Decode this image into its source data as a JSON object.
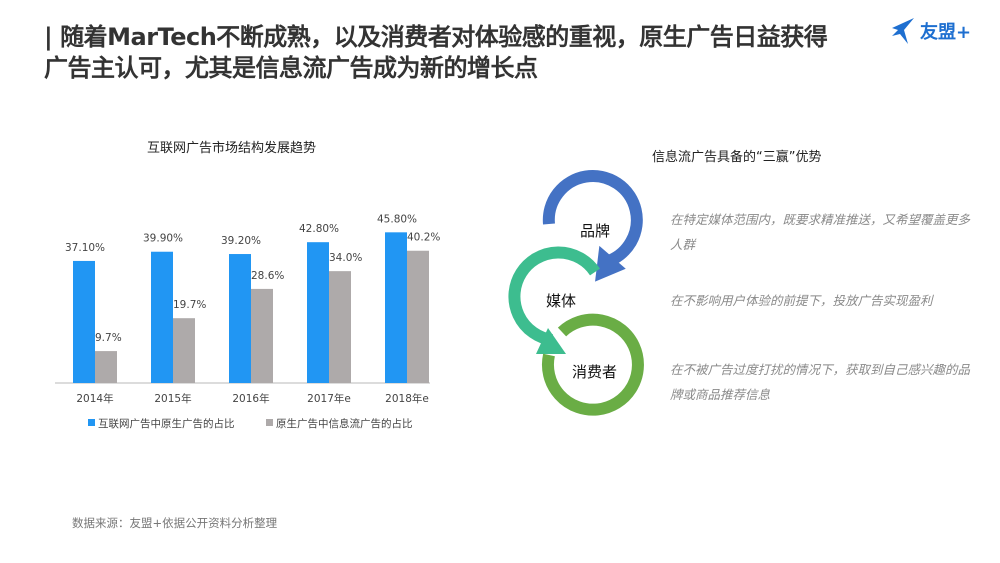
{
  "header": {
    "title_line1": "| 随着MarTech不断成熟，以及消费者对体验感的重视，原生广告日益获得",
    "title_line2": "广告主认可，尤其是信息流广告成为新的增长点",
    "logo_text": "友盟+"
  },
  "chart_data": {
    "type": "bar",
    "title": "互联网广告市场结构发展趋势",
    "categories": [
      "2014年",
      "2015年",
      "2016年",
      "2017年e",
      "2018年e"
    ],
    "series": [
      {
        "name": "互联网广告中原生广告的占比",
        "values": [
          37.1,
          39.9,
          39.2,
          42.8,
          45.8
        ],
        "labels": [
          "37.10%",
          "39.90%",
          "39.20%",
          "42.80%",
          "45.80%"
        ],
        "color": "#2196f3"
      },
      {
        "name": "原生广告中信息流广告的占比",
        "values": [
          9.7,
          19.7,
          28.6,
          34.0,
          40.2
        ],
        "labels": [
          "9.7%",
          "19.7%",
          "28.6%",
          "34.0%",
          "40.2%"
        ],
        "color": "#aeaaaa"
      }
    ],
    "ylim": [
      0,
      50
    ],
    "grid": false,
    "legend": "bottom"
  },
  "advantages": {
    "title": "信息流广告具备的“三赢”优势",
    "items": [
      {
        "label": "品牌",
        "desc": "在特定媒体范围内，既要求精准推送，又希望覆盖更多人群",
        "color": "#4472c4"
      },
      {
        "label": "媒体",
        "desc": "在不影响用户体验的前提下，投放广告实现盈利",
        "color": "#3dbd8f"
      },
      {
        "label": "消费者",
        "desc": "在不被广告过度打扰的情况下，获取到自己感兴趣的品牌或商品推荐信息",
        "color": "#6aad45"
      }
    ]
  },
  "source": "数据来源：友盟+依据公开资料分析整理"
}
